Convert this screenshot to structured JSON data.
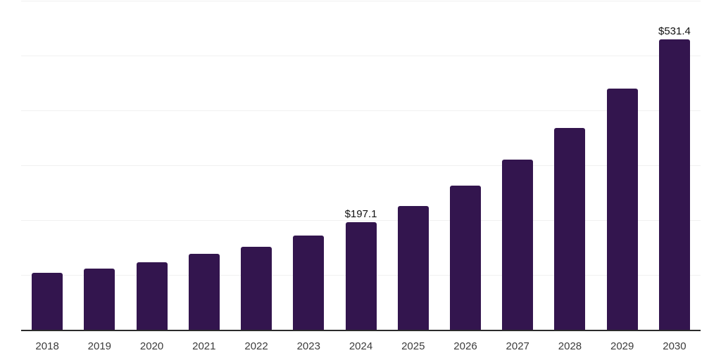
{
  "chart_data": {
    "type": "bar",
    "title": "",
    "xlabel": "",
    "ylabel": "",
    "categories": [
      "2018",
      "2019",
      "2020",
      "2021",
      "2022",
      "2023",
      "2024",
      "2025",
      "2026",
      "2027",
      "2028",
      "2029",
      "2030"
    ],
    "values": [
      105.1,
      112.8,
      124.4,
      139.7,
      152.6,
      173.1,
      197.1,
      226.9,
      264.1,
      311.5,
      369.2,
      441.0,
      531.4
    ],
    "data_labels": {
      "2024": "$197.1",
      "2030": "$531.4"
    },
    "ylim": [
      0,
      600
    ],
    "grid_step": 100,
    "grid": true,
    "legend": false,
    "y_tick_labels_visible": false
  },
  "colors": {
    "bar": "#33154e",
    "gridline": "#f0f0f0",
    "axis_line": "#2b2b2b",
    "x_tick_label": "#3c3c3c",
    "value_label": "#111111",
    "background": "#ffffff"
  }
}
